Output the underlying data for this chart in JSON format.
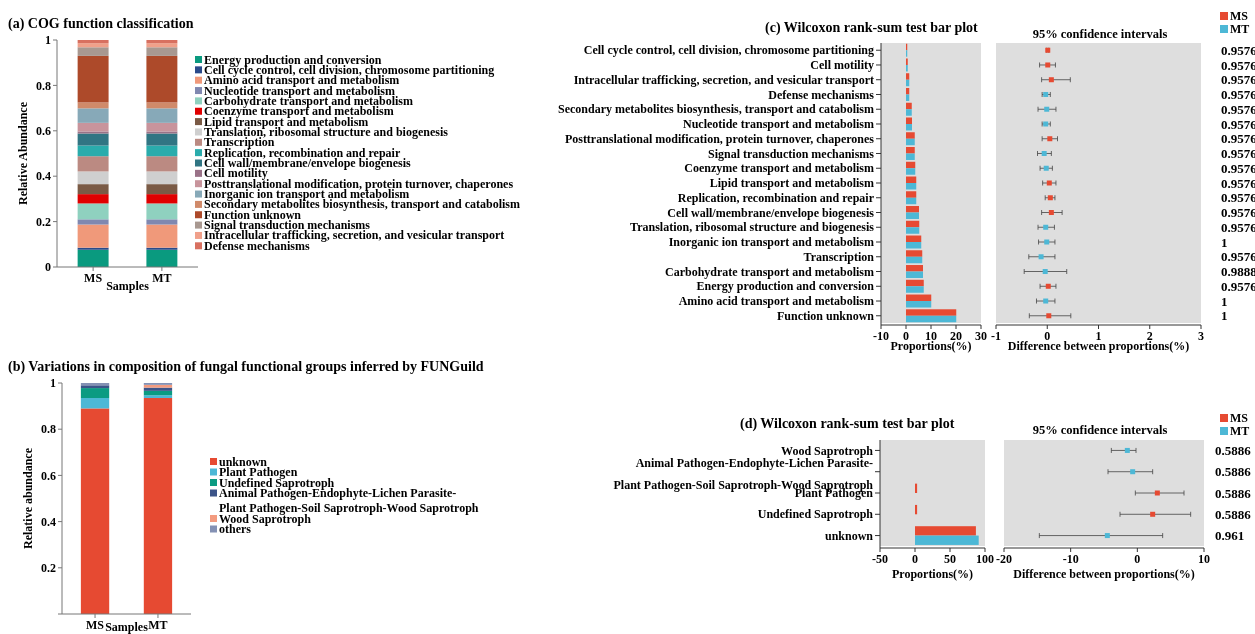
{
  "chart_data": [
    {
      "type": "bar",
      "stacked": true,
      "title": "(a) COG function classification",
      "xlabel": "Samples",
      "ylabel": "Relative Abundance",
      "categories": [
        "MS",
        "MT"
      ],
      "ylim": [
        0,
        1
      ],
      "yticks": [
        0,
        0.2,
        0.4,
        0.6,
        0.8,
        1
      ],
      "legend": "right",
      "series": [
        {
          "name": "Energy production and conversion",
          "color": "#0a9a7f",
          "values": [
            0.076,
            0.076
          ]
        },
        {
          "name": "Cell cycle control, cell division, chromosome partitioning",
          "color": "#2a4a8a",
          "values": [
            0.009,
            0.009
          ]
        },
        {
          "name": "Amino acid transport and metabolism",
          "color": "#f0997a",
          "values": [
            0.102,
            0.102
          ]
        },
        {
          "name": "Nucleotide transport and metabolism",
          "color": "#8088b0",
          "values": [
            0.023,
            0.023
          ]
        },
        {
          "name": "Carbohydrate transport and metabolism",
          "color": "#8fd1bf",
          "values": [
            0.07,
            0.07
          ]
        },
        {
          "name": "Coenzyme transport and metabolism",
          "color": "#e00000",
          "values": [
            0.041,
            0.041
          ]
        },
        {
          "name": "Lipid transport and metabolism",
          "color": "#7a5a45",
          "values": [
            0.044,
            0.044
          ]
        },
        {
          "name": "Translation, ribosomal structure and biogenesis",
          "color": "#cfcfcf",
          "values": [
            0.056,
            0.056
          ]
        },
        {
          "name": "Transcription",
          "color": "#bb8a82",
          "values": [
            0.067,
            0.067
          ]
        },
        {
          "name": "Replication, recombination and repair",
          "color": "#2aacac",
          "values": [
            0.047,
            0.047
          ]
        },
        {
          "name": "Cell wall/membrane/envelope biogenesis",
          "color": "#317583",
          "values": [
            0.053,
            0.053
          ]
        },
        {
          "name": "Cell motility",
          "color": "#9a7288",
          "values": [
            0.009,
            0.009
          ]
        },
        {
          "name": "Posttranslational modification, protein turnover, chaperones",
          "color": "#c8949c",
          "values": [
            0.038,
            0.038
          ]
        },
        {
          "name": "Inorganic ion transport and metabolism",
          "color": "#87a9b8",
          "values": [
            0.064,
            0.064
          ]
        },
        {
          "name": "Secondary metabolites biosynthesis, transport and catabolism",
          "color": "#d08a6a",
          "values": [
            0.026,
            0.026
          ]
        },
        {
          "name": "Function unknown",
          "color": "#ad4a2a",
          "values": [
            0.205,
            0.205
          ]
        },
        {
          "name": "Signal transduction mechanisms",
          "color": "#a89890",
          "values": [
            0.038,
            0.038
          ]
        },
        {
          "name": "Intracellular trafficking, secretion, and vesicular transport",
          "color": "#f0a08a",
          "values": [
            0.018,
            0.018
          ]
        },
        {
          "name": "Defense mechanisms",
          "color": "#d87060",
          "values": [
            0.014,
            0.014
          ]
        }
      ]
    },
    {
      "type": "bar",
      "orientation": "horizontal",
      "title": "(c) Wilcoxon rank-sum test bar plot",
      "xlabel": "Proportions(%)",
      "xlim": [
        -10,
        30
      ],
      "xticks": [
        -10,
        0,
        10,
        20,
        30
      ],
      "legend": "top right",
      "categories": [
        "Cell cycle control, cell division, chromosome partitioning",
        "Cell motility",
        "Intracellular trafficking, secretion, and vesicular transport",
        "Defense mechanisms",
        "Secondary metabolites biosynthesis, transport and catabolism",
        "Nucleotide transport and metabolism",
        "Posttranslational modification, protein turnover, chaperones",
        "Signal transduction mechanisms",
        "Coenzyme transport and metabolism",
        "Lipid transport and metabolism",
        "Replication, recombination and repair",
        "Cell wall/membrane/envelope biogenesis",
        "Translation, ribosomal structure and biogenesis",
        "Inorganic ion transport and metabolism",
        "Transcription",
        "Carbohydrate transport and metabolism",
        "Energy production and conversion",
        "Amino acid transport and metabolism",
        "Function unknown"
      ],
      "series": [
        {
          "name": "MS",
          "color": "#e64a32",
          "values": [
            0.5,
            0.7,
            1.3,
            1.3,
            2.3,
            2.4,
            3.5,
            3.5,
            3.7,
            4.1,
            4.1,
            5.2,
            5.3,
            6.1,
            6.5,
            6.8,
            7.1,
            10.1,
            20.1
          ]
        },
        {
          "name": "MT",
          "color": "#4db8d6",
          "values": [
            0.5,
            0.7,
            1.3,
            1.3,
            2.3,
            2.4,
            3.5,
            3.5,
            3.7,
            4.1,
            4.1,
            5.2,
            5.3,
            6.1,
            6.5,
            6.8,
            7.1,
            10.1,
            20.1
          ]
        }
      ]
    },
    {
      "type": "scatter",
      "orientation": "horizontal",
      "title": "95% confidence intervals",
      "xlabel": "Difference between proportions(%)",
      "xlim": [
        -1,
        3
      ],
      "xticks": [
        -1,
        0,
        1,
        2,
        3
      ],
      "marker": "square",
      "categories": [
        null,
        null,
        null,
        null,
        null,
        null,
        null,
        null,
        null,
        null,
        null,
        null,
        null,
        null,
        null,
        null,
        null,
        null,
        null
      ],
      "annotations": [
        "0.9576",
        "0.9576",
        "0.9576",
        "0.9576",
        "0.9576",
        "0.9576",
        "0.9576",
        "0.9576",
        "0.9576",
        "0.9576",
        "0.9576",
        "0.9576",
        "0.9576",
        "1",
        "0.9576",
        "0.9888",
        "0.9576",
        "1",
        "1"
      ],
      "series": [
        {
          "color": "#e64a32",
          "values": [
            0.01,
            0.01,
            0.08,
            null,
            null,
            null,
            0.05,
            null,
            null,
            0.04,
            0.06,
            0.08,
            null,
            null,
            null,
            null,
            0.02,
            null,
            0.03
          ],
          "errors": [
            [
              -0.01,
              0.03
            ],
            [
              -0.15,
              0.16
            ],
            [
              -0.11,
              0.45
            ],
            null,
            null,
            null,
            [
              -0.1,
              0.2
            ],
            null,
            null,
            [
              -0.09,
              0.17
            ],
            [
              -0.04,
              0.15
            ],
            [
              -0.11,
              0.29
            ],
            null,
            null,
            null,
            null,
            [
              -0.14,
              0.17
            ],
            null,
            [
              -0.35,
              0.46
            ]
          ]
        },
        {
          "color": "#4db8d6",
          "values": [
            null,
            null,
            null,
            -0.03,
            -0.01,
            -0.03,
            null,
            -0.06,
            -0.02,
            null,
            null,
            null,
            -0.03,
            -0.01,
            -0.12,
            -0.04,
            null,
            -0.03,
            null
          ],
          "errors": [
            null,
            null,
            null,
            [
              -0.1,
              0.06
            ],
            [
              -0.18,
              0.17
            ],
            [
              -0.1,
              0.06
            ],
            null,
            [
              -0.19,
              0.08
            ],
            [
              -0.14,
              0.1
            ],
            null,
            null,
            null,
            [
              -0.18,
              0.14
            ],
            [
              -0.17,
              0.15
            ],
            [
              -0.36,
              0.15
            ],
            [
              -0.45,
              0.38
            ],
            null,
            [
              -0.21,
              0.15
            ],
            null
          ]
        }
      ]
    },
    {
      "type": "bar",
      "stacked": true,
      "title": "(b) Variations in composition of fungal functional groups inferred by FUNGuild",
      "xlabel": "Samples",
      "ylabel": "Relative abundance",
      "categories": [
        "MS",
        "MT"
      ],
      "ylim": [
        0,
        1
      ],
      "yticks": [
        {
          "value": 0,
          "label": null
        },
        0.2,
        0.4,
        0.6,
        0.8,
        1
      ],
      "legend": "right",
      "series": [
        {
          "name": "unknown",
          "color": "#e64a32",
          "values": [
            0.89,
            0.935
          ]
        },
        {
          "name": "Plant Pathogen",
          "color": "#4db8d6",
          "values": [
            0.045,
            0.012
          ]
        },
        {
          "name": "Undefined Saprotroph",
          "color": "#0b9b82",
          "values": [
            0.043,
            0.019
          ]
        },
        {
          "name": "Animal Pathogen-Endophyte-Lichen Parasite-Plant Pathogen-Soil Saprotroph-Wood Saprotroph",
          "color": "#3c5488",
          "values": [
            0.012,
            0.014
          ]
        },
        {
          "name": "Wood Saprotroph",
          "color": "#f39b7f",
          "values": [
            null,
            0.012
          ]
        },
        {
          "name": "others",
          "color": "#8491b4",
          "values": [
            0.01,
            0.008
          ]
        }
      ]
    },
    {
      "type": "bar",
      "orientation": "horizontal",
      "title": "(d) Wilcoxon rank-sum test bar plot",
      "xlabel": "Proportions(%)",
      "xlim": [
        -50,
        100
      ],
      "xticks": [
        -50,
        0,
        50,
        100
      ],
      "legend": "top right",
      "categories": [
        "Wood Saprotroph",
        "Animal Pathogen-Endophyte-Lichen Parasite-Plant Pathogen-Soil Saprotroph-Wood Saprotroph",
        "Plant Pathogen",
        "Undefined Saprotroph",
        "unknown"
      ],
      "series": [
        {
          "name": "MS",
          "color": "#e64a32",
          "values": [
            0,
            0,
            3,
            3,
            87
          ]
        },
        {
          "name": "MT",
          "color": "#4db8d6",
          "values": [
            0,
            0,
            0,
            0,
            91
          ]
        }
      ]
    },
    {
      "type": "scatter",
      "orientation": "horizontal",
      "title": "95% confidence intervals",
      "xlabel": "Difference between proportions(%)",
      "xlim": [
        -20,
        10
      ],
      "xticks": [
        -20,
        -10,
        0,
        10
      ],
      "marker": "square",
      "categories": [
        null,
        null,
        null,
        null,
        null
      ],
      "annotations": [
        "0.5886",
        "0.5886",
        "0.5886",
        "0.5886",
        "0.961"
      ],
      "series": [
        {
          "color": "#e64a32",
          "values": [
            null,
            null,
            3.0,
            2.3,
            null
          ],
          "errors": [
            null,
            null,
            [
              -0.3,
              7.0
            ],
            [
              -2.6,
              8.0
            ],
            null
          ]
        },
        {
          "color": "#4db8d6",
          "values": [
            -1.5,
            -0.7,
            null,
            null,
            -4.5
          ],
          "errors": [
            [
              -3.9,
              -0.2
            ],
            [
              -4.4,
              2.3
            ],
            null,
            null,
            [
              -14.7,
              3.8
            ]
          ]
        }
      ]
    }
  ]
}
